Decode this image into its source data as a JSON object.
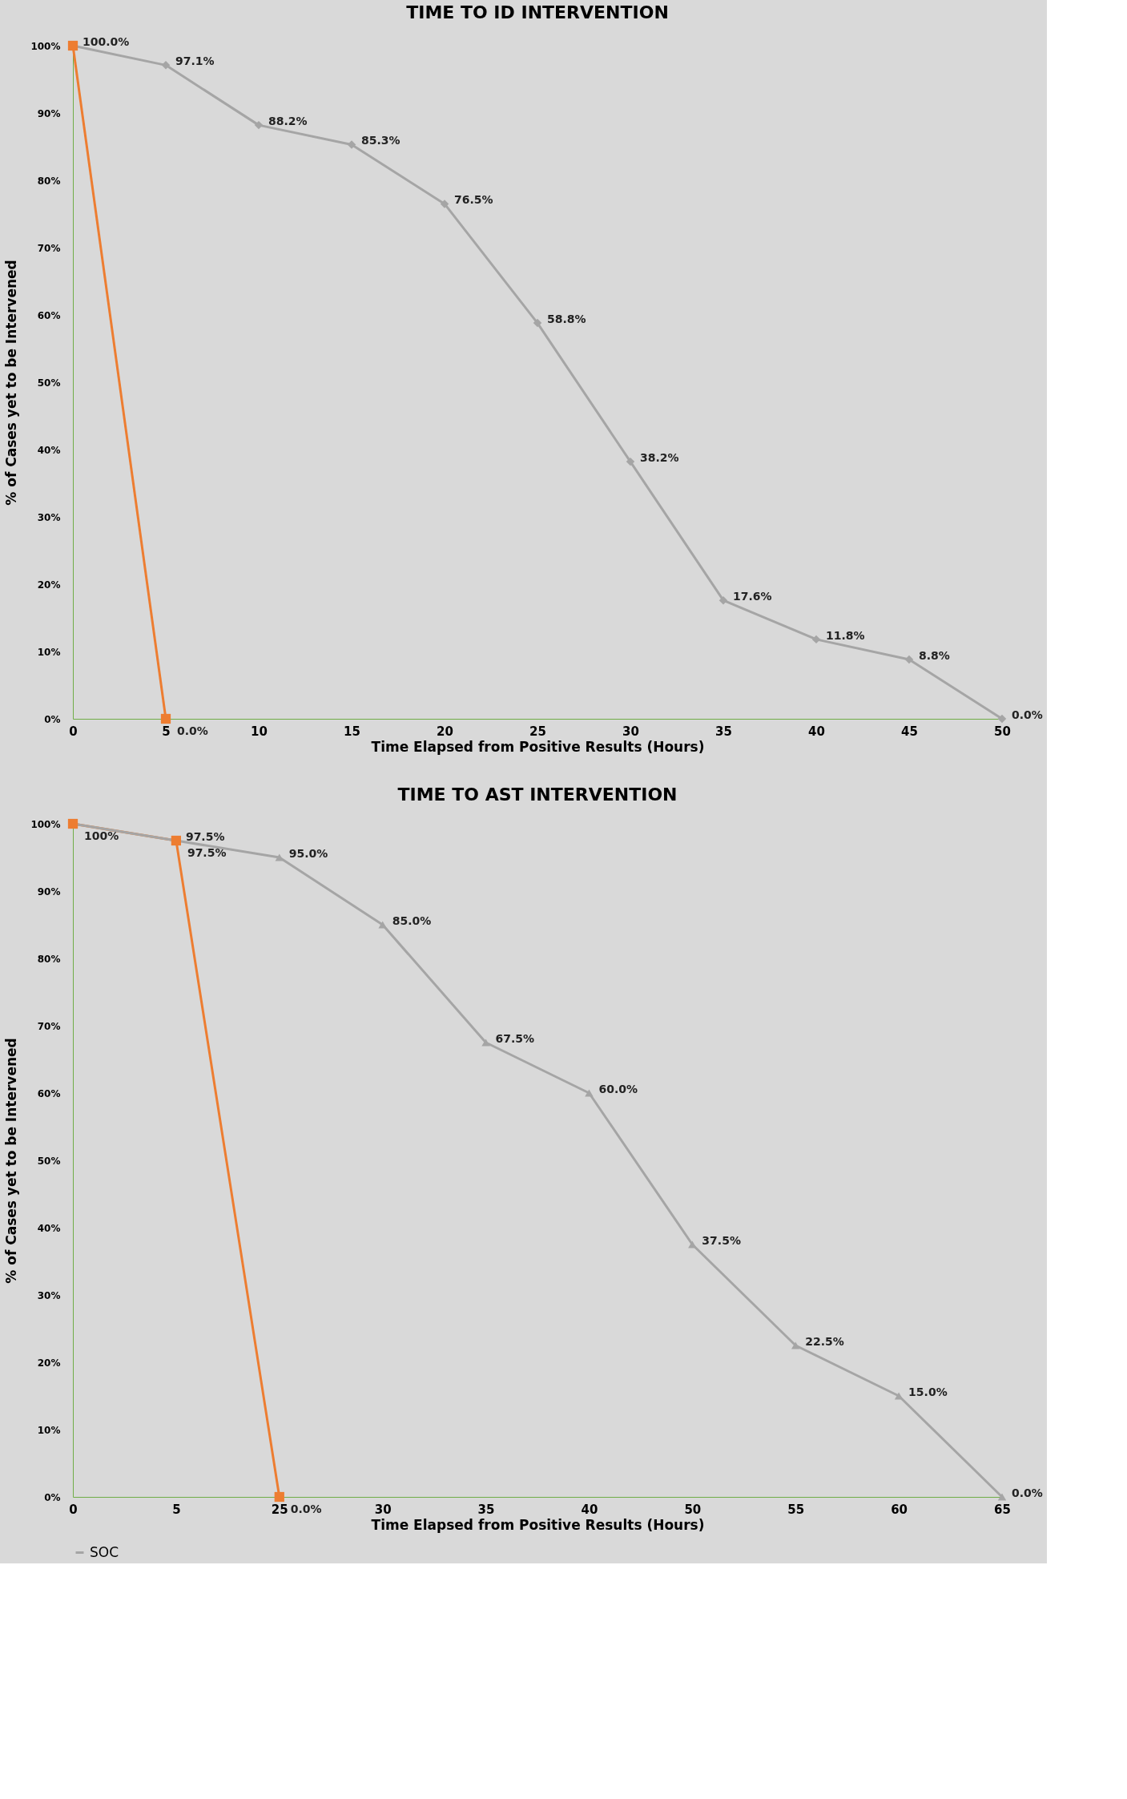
{
  "chart_data": [
    {
      "type": "line",
      "title": "TIME TO ID INTERVENTION",
      "xlabel": "Time Elapsed from Positive Results (Hours)",
      "ylabel": "% of Cases yet to be Intervened",
      "categories": [
        "0",
        "5",
        "10",
        "15",
        "20",
        "25",
        "30",
        "35",
        "40",
        "45",
        "50"
      ],
      "ylim": [
        0,
        100
      ],
      "yticks": [
        {
          "value": 0,
          "label": "0%"
        },
        {
          "value": 10,
          "label": "10%"
        },
        {
          "value": 20,
          "label": "20%"
        },
        {
          "value": 30,
          "label": "30%"
        },
        {
          "value": 40,
          "label": "40%"
        },
        {
          "value": 50,
          "label": "50%"
        },
        {
          "value": 60,
          "label": "60%"
        },
        {
          "value": 70,
          "label": "70%"
        },
        {
          "value": 80,
          "label": "80%"
        },
        {
          "value": 90,
          "label": "90%"
        },
        {
          "value": 100,
          "label": "100%"
        }
      ],
      "legend": "bottom",
      "series": [
        {
          "color": "#ed7d31",
          "marker": "square",
          "values": [
            100,
            0,
            null,
            null,
            null,
            null,
            null,
            null,
            null,
            null,
            null
          ],
          "value_labels": [
            null,
            "0.0%",
            null,
            null,
            null,
            null,
            null,
            null,
            null,
            null,
            null
          ]
        },
        {
          "name": "SOC",
          "color": "#a5a5a5",
          "marker": "diamond",
          "values": [
            100,
            97.1,
            88.2,
            85.3,
            76.5,
            58.8,
            38.2,
            17.6,
            11.8,
            8.8,
            0
          ],
          "value_labels": [
            "100.0%",
            "97.1%",
            "88.2%",
            "85.3%",
            "76.5%",
            "58.8%",
            "38.2%",
            "17.6%",
            "11.8%",
            "8.8%",
            "0.0%"
          ]
        }
      ]
    },
    {
      "type": "line",
      "title": "TIME TO AST INTERVENTION",
      "xlabel": "Time Elapsed from Positive Results (Hours)",
      "ylabel": "% of Cases yet to be Intervened",
      "categories": [
        "0",
        "5",
        "25",
        "30",
        "35",
        "40",
        "50",
        "55",
        "60",
        "65"
      ],
      "ylim": [
        0,
        100
      ],
      "yticks": [
        {
          "value": 0,
          "label": "0%"
        },
        {
          "value": 10,
          "label": "10%"
        },
        {
          "value": 20,
          "label": "20%"
        },
        {
          "value": 30,
          "label": "30%"
        },
        {
          "value": 40,
          "label": "40%"
        },
        {
          "value": 50,
          "label": "50%"
        },
        {
          "value": 60,
          "label": "60%"
        },
        {
          "value": 70,
          "label": "70%"
        },
        {
          "value": 80,
          "label": "80%"
        },
        {
          "value": 90,
          "label": "90%"
        },
        {
          "value": 100,
          "label": "100%"
        }
      ],
      "legend": "bottom",
      "series": [
        {
          "color": "#ed7d31",
          "marker": "square",
          "values": [
            100,
            97.5,
            0,
            null,
            null,
            null,
            null,
            null,
            null,
            null
          ],
          "value_labels": [
            "100%",
            "97.5%",
            "0.0%",
            null,
            null,
            null,
            null,
            null,
            null,
            null
          ]
        },
        {
          "name": "SOC",
          "color": "#a5a5a5",
          "marker": "triangle",
          "values": [
            100,
            97.5,
            95,
            85,
            67.5,
            60,
            37.5,
            22.5,
            15,
            0
          ],
          "value_labels": [
            null,
            "97.5%",
            "95.0%",
            "85.0%",
            "67.5%",
            "60.0%",
            "37.5%",
            "22.5%",
            "15.0%",
            "0.0%"
          ]
        }
      ]
    }
  ]
}
